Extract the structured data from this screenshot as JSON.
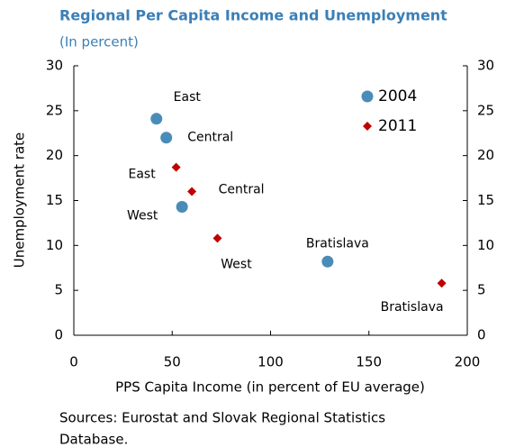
{
  "chart_data": {
    "type": "scatter",
    "title": "Regional Per Capita Income and Unemployment",
    "subtitle": "(In percent)",
    "x_label": "PPS Capita Income (in percent of EU average)",
    "y_label": "Unemployment rate",
    "footnote": [
      "Sources: Eurostat and Slovak Regional Statistics",
      "Database."
    ],
    "xlim": [
      0,
      200
    ],
    "xticks": [
      0,
      50,
      100,
      150,
      200
    ],
    "ylim": [
      0,
      30
    ],
    "yticks": [
      0,
      5,
      10,
      15,
      20,
      25,
      30
    ],
    "y2lim": [
      0,
      30
    ],
    "y2ticks": [
      0,
      5,
      10,
      15,
      20,
      25,
      30
    ],
    "grid": false,
    "legend": "upper right",
    "series": [
      {
        "name": "2004",
        "color": "#4a8cb8",
        "marker": "circle",
        "labels": [
          "East",
          "Central",
          "West",
          "Bratislava"
        ],
        "x": [
          42,
          47,
          55,
          129
        ],
        "values": [
          24.1,
          22,
          14.3,
          8.2
        ]
      },
      {
        "name": "2011",
        "color": "#c00000",
        "marker": "diamond",
        "labels": [
          "East",
          "Central",
          "West",
          "Bratislava"
        ],
        "x": [
          52,
          60,
          73,
          187
        ],
        "values": [
          18.7,
          16,
          10.8,
          5.8
        ]
      }
    ]
  }
}
